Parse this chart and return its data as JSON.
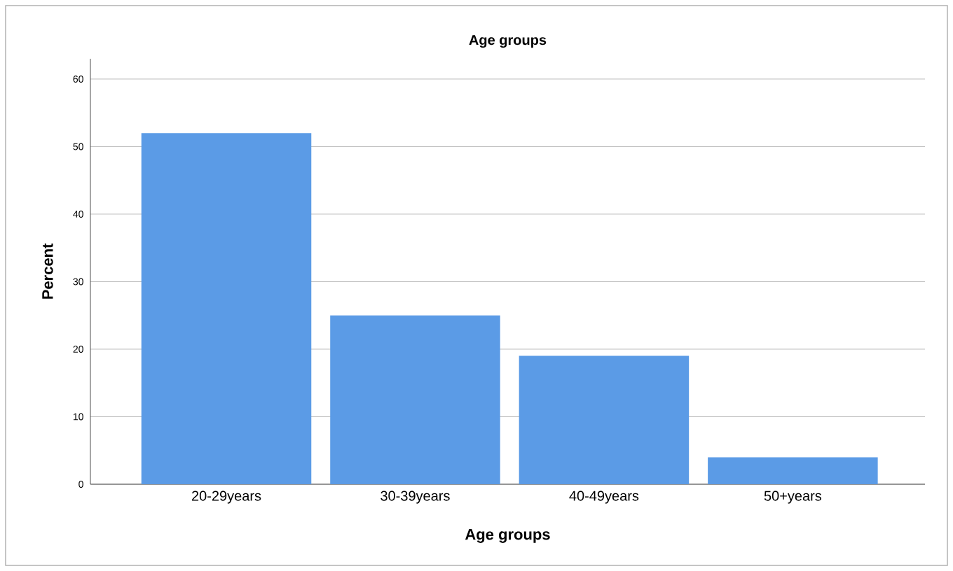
{
  "chart_data": {
    "type": "bar",
    "title": "Age groups",
    "xlabel": "Age groups",
    "ylabel": "Percent",
    "categories": [
      "20-29years",
      "30-39years",
      "40-49years",
      "50+years"
    ],
    "values": [
      52,
      25,
      19,
      4
    ],
    "color": "#5b9be6",
    "ylim": [
      0,
      63
    ],
    "yticks": [
      0,
      10,
      20,
      30,
      40,
      50,
      60
    ],
    "grid": "y"
  }
}
